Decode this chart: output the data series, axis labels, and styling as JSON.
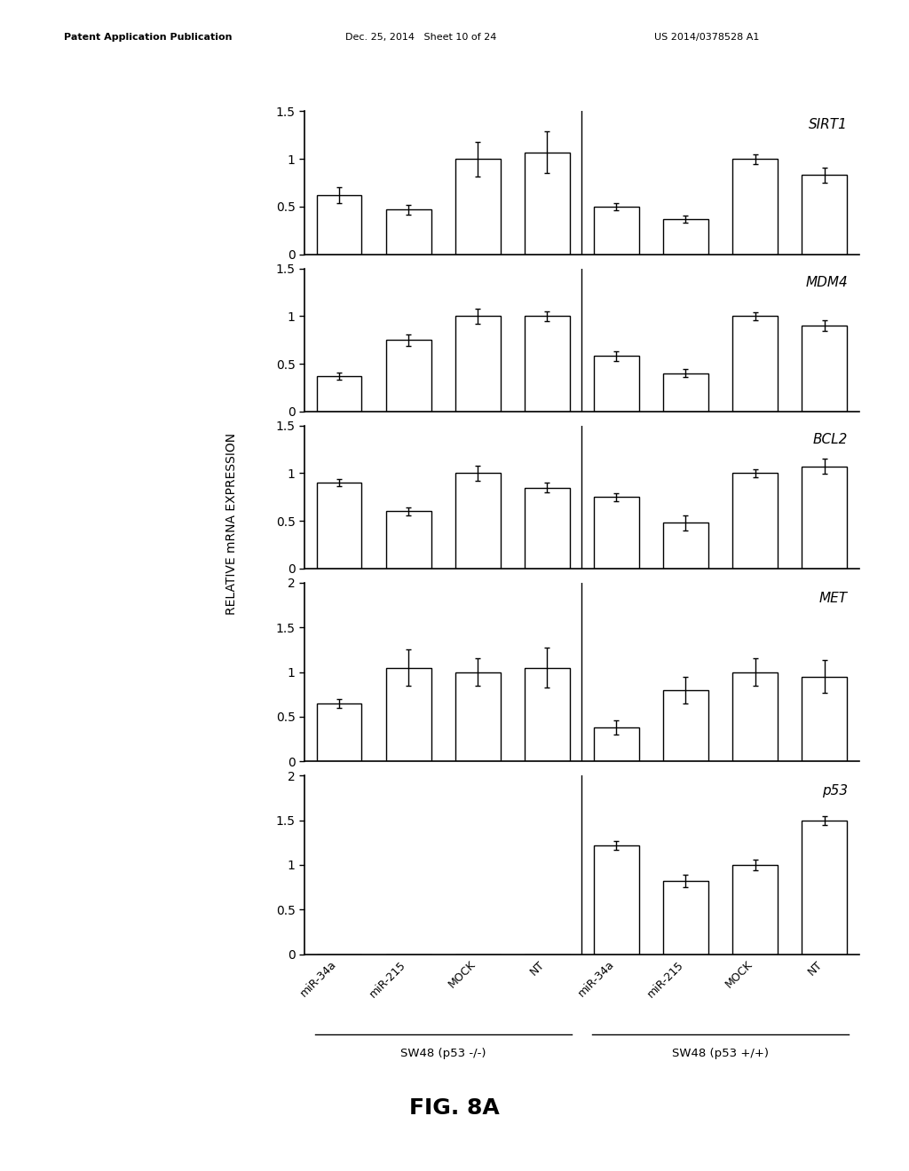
{
  "panels": [
    {
      "title": "SIRT1",
      "ylim": [
        0,
        1.5
      ],
      "yticks": [
        0,
        0.5,
        1,
        1.5
      ],
      "ytick_labels": [
        "0",
        "0.5",
        "1",
        "1.5"
      ],
      "values": [
        0.62,
        0.47,
        1.0,
        1.07,
        0.5,
        0.37,
        1.0,
        0.83
      ],
      "errors": [
        0.08,
        0.05,
        0.18,
        0.22,
        0.04,
        0.04,
        0.05,
        0.08
      ]
    },
    {
      "title": "MDM4",
      "ylim": [
        0,
        1.5
      ],
      "yticks": [
        0,
        0.5,
        1,
        1.5
      ],
      "ytick_labels": [
        "0",
        "0.5",
        "1",
        "1.5"
      ],
      "values": [
        0.37,
        0.75,
        1.0,
        1.0,
        0.58,
        0.4,
        1.0,
        0.9
      ],
      "errors": [
        0.04,
        0.06,
        0.08,
        0.05,
        0.05,
        0.04,
        0.04,
        0.06
      ]
    },
    {
      "title": "BCL2",
      "ylim": [
        0,
        1.5
      ],
      "yticks": [
        0,
        0.5,
        1,
        1.5
      ],
      "ytick_labels": [
        "0",
        "0.5",
        "1",
        "1.5"
      ],
      "values": [
        0.9,
        0.6,
        1.0,
        0.85,
        0.75,
        0.48,
        1.0,
        1.07
      ],
      "errors": [
        0.04,
        0.04,
        0.08,
        0.05,
        0.04,
        0.08,
        0.04,
        0.08
      ]
    },
    {
      "title": "MET",
      "ylim": [
        0,
        2.0
      ],
      "yticks": [
        0,
        0.5,
        1,
        1.5,
        2
      ],
      "ytick_labels": [
        "0",
        "0.5",
        "1",
        "1.5",
        "2"
      ],
      "values": [
        0.65,
        1.05,
        1.0,
        1.05,
        0.38,
        0.8,
        1.0,
        0.95
      ],
      "errors": [
        0.05,
        0.2,
        0.15,
        0.22,
        0.08,
        0.15,
        0.15,
        0.18
      ]
    },
    {
      "title": "p53",
      "ylim": [
        0,
        2.0
      ],
      "yticks": [
        0,
        0.5,
        1,
        1.5,
        2
      ],
      "ytick_labels": [
        "0",
        "0.5",
        "1",
        "1.5",
        "2"
      ],
      "values": [
        0.0,
        0.0,
        0.0,
        0.0,
        1.22,
        0.82,
        1.0,
        1.5
      ],
      "errors": [
        0.0,
        0.0,
        0.0,
        0.0,
        0.05,
        0.07,
        0.06,
        0.05
      ]
    }
  ],
  "x_labels": [
    "miR-34a",
    "miR-215",
    "MOCK",
    "NT",
    "miR-34a",
    "miR-215",
    "MOCK",
    "NT"
  ],
  "group_labels": [
    "SW48 (p53 -/-)",
    "SW48 (p53 +/+)"
  ],
  "ylabel": "RELATIVE mRNA EXPRESSION",
  "fig_label": "FIG. 8A",
  "bar_color": "#ffffff",
  "bar_edgecolor": "#000000",
  "header_left": "Patent Application Publication",
  "header_mid": "Dec. 25, 2014   Sheet 10 of 24",
  "header_right": "US 2014/0378528 A1",
  "bar_width": 0.65
}
